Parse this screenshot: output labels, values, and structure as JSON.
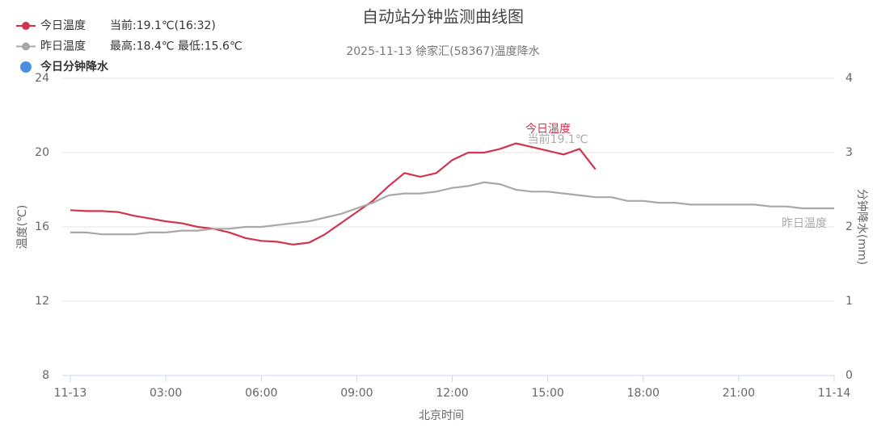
{
  "chart_data": {
    "type": "line",
    "title": "自动站分钟监测曲线图",
    "subtitle": "2025-11-13 徐家汇(58367)温度降水",
    "x_label": "北京时间",
    "y_label": "温度(℃)",
    "y2_label": "分钟降水(mm)",
    "xlim": [
      0,
      24
    ],
    "xticks": [
      {
        "value": 0,
        "label": "11-13"
      },
      {
        "value": 3,
        "label": "03:00"
      },
      {
        "value": 6,
        "label": "06:00"
      },
      {
        "value": 9,
        "label": "09:00"
      },
      {
        "value": 12,
        "label": "12:00"
      },
      {
        "value": 15,
        "label": "15:00"
      },
      {
        "value": 18,
        "label": "18:00"
      },
      {
        "value": 21,
        "label": "21:00"
      },
      {
        "value": 24,
        "label": "11-14"
      }
    ],
    "ylim": [
      8,
      24
    ],
    "yticks": [
      8,
      12,
      16,
      20,
      24
    ],
    "y2lim": [
      0,
      4
    ],
    "y2ticks": [
      0,
      1,
      2,
      3,
      4
    ],
    "grid": true,
    "x": [
      0,
      0.5,
      1,
      1.5,
      2,
      2.5,
      3,
      3.5,
      4,
      4.5,
      5,
      5.5,
      6,
      6.5,
      7,
      7.5,
      8,
      8.5,
      9,
      9.5,
      10,
      10.5,
      11,
      11.5,
      12,
      12.5,
      13,
      13.5,
      14,
      14.5,
      15,
      15.5,
      16,
      16.5,
      17,
      17.5,
      18,
      18.5,
      19,
      19.5,
      20,
      20.5,
      21,
      21.5,
      22,
      22.5,
      23,
      23.5,
      24
    ],
    "series": [
      {
        "name": "今日温度",
        "color": "#d2344f",
        "info": "当前:19.1℃(16:32)",
        "values": [
          16.9,
          16.85,
          16.85,
          16.8,
          16.6,
          16.45,
          16.3,
          16.2,
          16.0,
          15.9,
          15.7,
          15.4,
          15.25,
          15.2,
          15.05,
          15.15,
          15.6,
          16.2,
          16.8,
          17.4,
          18.2,
          18.9,
          18.7,
          18.9,
          19.6,
          20.0,
          20.0,
          20.2,
          20.5,
          20.3,
          20.1,
          19.9,
          20.2,
          19.1,
          null,
          null,
          null,
          null,
          null,
          null,
          null,
          null,
          null,
          null,
          null,
          null,
          null,
          null,
          null
        ]
      },
      {
        "name": "昨日温度",
        "color": "#a8a8a8",
        "info": "最高:18.4℃ 最低:15.6℃",
        "values": [
          15.7,
          15.7,
          15.6,
          15.6,
          15.6,
          15.7,
          15.7,
          15.8,
          15.8,
          15.9,
          15.9,
          16.0,
          16.0,
          16.1,
          16.2,
          16.3,
          16.5,
          16.7,
          17.0,
          17.3,
          17.7,
          17.8,
          17.8,
          17.9,
          18.1,
          18.2,
          18.4,
          18.3,
          18.0,
          17.9,
          17.9,
          17.8,
          17.7,
          17.6,
          17.6,
          17.4,
          17.4,
          17.3,
          17.3,
          17.2,
          17.2,
          17.2,
          17.2,
          17.2,
          17.1,
          17.1,
          17.0,
          17.0,
          17.0
        ]
      },
      {
        "name": "今日分钟降水",
        "color": "#4a90e2",
        "axis": "y2",
        "values": [
          null,
          null,
          null,
          null,
          null,
          null,
          null,
          null,
          null,
          null,
          null,
          null,
          null,
          null,
          null,
          null,
          null,
          null,
          null,
          null,
          null,
          null,
          null,
          null,
          null,
          null,
          null,
          null,
          null,
          null,
          null,
          null,
          null,
          null,
          null,
          null,
          null,
          null,
          null,
          null,
          null,
          null,
          null,
          null,
          null,
          null,
          null,
          null,
          null
        ]
      }
    ],
    "line_labels": [
      "今日温度",
      "当前19.1℃",
      "昨日温度"
    ]
  }
}
